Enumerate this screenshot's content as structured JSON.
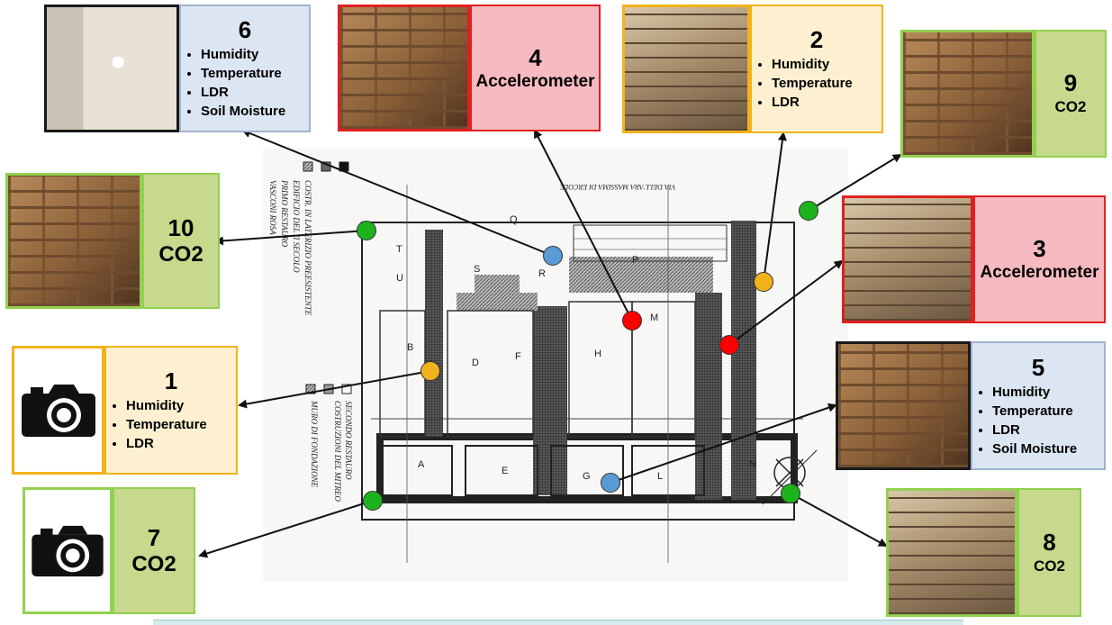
{
  "colors": {
    "yellow_border": "#f2b21b",
    "yellow_fill": "#fdf0d0",
    "red_border": "#e02020",
    "red_fill": "#f6bac0",
    "black_border": "#1a1a1a",
    "blue_fill": "#dce6f2",
    "green_border": "#92d050",
    "green_fill": "#c6d98d",
    "dot_blue": "#5b9bd5",
    "dot_red": "#ff0000",
    "dot_yellow": "#f2b21b",
    "dot_green": "#1db31d"
  },
  "sensors": [
    {
      "id": "1",
      "items": [
        "Humidity",
        "Temperature",
        "LDR"
      ],
      "icon": "camera-icon"
    },
    {
      "id": "2",
      "items": [
        "Humidity",
        "Temperature",
        "LDR"
      ]
    },
    {
      "id": "3",
      "title": "Accelerometer"
    },
    {
      "id": "4",
      "title": "Accelerometer"
    },
    {
      "id": "5",
      "items": [
        "Humidity",
        "Temperature",
        "LDR",
        "Soil Moisture"
      ]
    },
    {
      "id": "6",
      "items": [
        "Humidity",
        "Temperature",
        "LDR",
        "Soil Moisture"
      ]
    },
    {
      "id": "7",
      "title": "CO2",
      "icon": "camera-icon"
    },
    {
      "id": "8",
      "title": "CO2"
    },
    {
      "id": "9",
      "title": "CO2"
    },
    {
      "id": "10",
      "title": "CO2"
    }
  ],
  "plan": {
    "street": "VIA DELL'ARA MASSIMA DI ERCOLE",
    "legend": [
      "COSTR. IN LATERIZIO PREESISTENTE",
      "EDIFICIO DEL II SECOLO",
      "PRIMO RESTAURO",
      "SECONDO RESTAURO",
      "COSTRUZIONI DEL MITREO",
      "MURO DI FONDAZIONE",
      "VASCONI ROSA"
    ],
    "rooms": [
      "A",
      "B",
      "D",
      "E",
      "F",
      "G",
      "H",
      "L",
      "M",
      "N",
      "P",
      "Q",
      "R",
      "S",
      "T",
      "U"
    ]
  }
}
